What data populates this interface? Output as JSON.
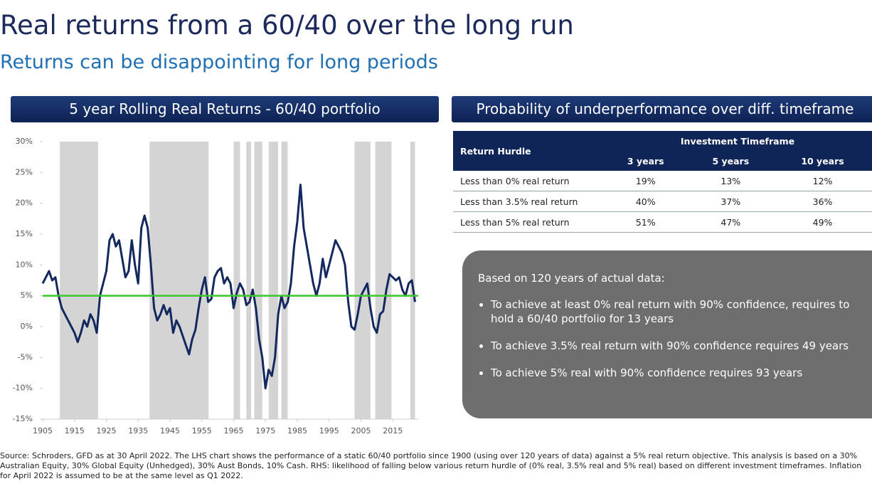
{
  "title": "Real returns from a 60/40 over the long run",
  "subtitle": "Returns can be disappointing for long periods",
  "left_header": "5 year Rolling Real Returns - 60/40 portfolio",
  "right_header": "Probability of underperformance over diff. timeframe",
  "chart_data": {
    "type": "line",
    "color": "#13285e",
    "x": [
      1905,
      1906,
      1907,
      1908,
      1909,
      1910,
      1911,
      1912,
      1913,
      1914,
      1915,
      1916,
      1917,
      1918,
      1919,
      1920,
      1921,
      1922,
      1923,
      1924,
      1925,
      1926,
      1927,
      1928,
      1929,
      1930,
      1931,
      1932,
      1933,
      1934,
      1935,
      1936,
      1937,
      1938,
      1939,
      1940,
      1941,
      1942,
      1943,
      1944,
      1945,
      1946,
      1947,
      1948,
      1949,
      1950,
      1951,
      1952,
      1953,
      1954,
      1955,
      1956,
      1957,
      1958,
      1959,
      1960,
      1961,
      1962,
      1963,
      1964,
      1965,
      1966,
      1967,
      1968,
      1969,
      1970,
      1971,
      1972,
      1973,
      1974,
      1975,
      1976,
      1977,
      1978,
      1979,
      1980,
      1981,
      1982,
      1983,
      1984,
      1985,
      1986,
      1987,
      1988,
      1989,
      1990,
      1991,
      1992,
      1993,
      1994,
      1995,
      1996,
      1997,
      1998,
      1999,
      2000,
      2001,
      2002,
      2003,
      2004,
      2005,
      2006,
      2007,
      2008,
      2009,
      2010,
      2011,
      2012,
      2013,
      2014,
      2015,
      2016,
      2017,
      2018,
      2019,
      2020,
      2021,
      2022
    ],
    "values": [
      7,
      8,
      9,
      7.5,
      8,
      5,
      3,
      2,
      1,
      0,
      -1,
      -2.5,
      -1,
      1,
      0,
      2,
      1,
      -1,
      5,
      7,
      9,
      14,
      15,
      13,
      14,
      11,
      8,
      9,
      14,
      10,
      7,
      16,
      18,
      16,
      10,
      3,
      1,
      2,
      3.5,
      2,
      3,
      -1,
      1,
      0,
      -1.5,
      -3,
      -4.5,
      -2,
      -0.5,
      3,
      6,
      8,
      4,
      4.5,
      8,
      9,
      9.5,
      7,
      8,
      7,
      3,
      5.5,
      7,
      6,
      3.5,
      4,
      6,
      3,
      -2,
      -5,
      -10,
      -7,
      -8,
      -5,
      2,
      5,
      3,
      4,
      7,
      13,
      17,
      23,
      16,
      13,
      10,
      7,
      5,
      7,
      11,
      8,
      10,
      12,
      14,
      13,
      12,
      10,
      4,
      0,
      -0.5,
      2,
      5,
      6,
      7,
      3,
      0,
      -1,
      2,
      2.5,
      6,
      8.5,
      8,
      7.5,
      8,
      6,
      5,
      7,
      7.5,
      4
    ],
    "xlim": [
      1905,
      2023
    ],
    "xticks": [
      1905,
      1915,
      1925,
      1935,
      1945,
      1955,
      1965,
      1975,
      1985,
      1995,
      2005,
      2015
    ],
    "ylim": [
      -15,
      30
    ],
    "yticks": [
      {
        "value": -15,
        "label": "-15%"
      },
      {
        "value": -10,
        "label": "-10%"
      },
      {
        "value": -5,
        "label": "-5%"
      },
      {
        "value": 0,
        "label": "0%"
      },
      {
        "value": 5,
        "label": "5%"
      },
      {
        "value": 10,
        "label": "10%"
      },
      {
        "value": 15,
        "label": "15%"
      },
      {
        "value": 20,
        "label": "20%"
      },
      {
        "value": 25,
        "label": "25%"
      },
      {
        "value": 30,
        "label": "30%"
      }
    ],
    "reference_line": 5,
    "reference_color": "#3ec42c",
    "shade_color": "#d4d4d4",
    "shaded_periods": [
      [
        1910.4,
        1922.4
      ],
      [
        1938.6,
        1957.1
      ],
      [
        1965,
        1967
      ],
      [
        1969,
        1970.5
      ],
      [
        1971.5,
        1974
      ],
      [
        1976,
        1979
      ],
      [
        1980,
        1982
      ],
      [
        2003,
        2008
      ],
      [
        2009.5,
        2014.6
      ],
      [
        2020.5,
        2022
      ]
    ]
  },
  "table": {
    "header_left": "Return Hurdle",
    "group": "Investment Timeframe",
    "columns": [
      "3 years",
      "5 years",
      "10 years"
    ],
    "rows": [
      [
        "Less than 0% real return",
        "19%",
        "13%",
        "12%"
      ],
      [
        "Less than 3.5% real return",
        "40%",
        "37%",
        "36%"
      ],
      [
        "Less than 5% real return",
        "51%",
        "47%",
        "49%"
      ]
    ]
  },
  "box": {
    "intro": "Based on 120 years of actual data:",
    "bullets": [
      "To achieve at least 0% real return with 90% confidence, requires to hold a 60/40 portfolio for 13 years",
      "To achieve 3.5% real return with 90% confidence requires 49 years",
      "To achieve 5% real with 90% confidence requires 93 years"
    ]
  },
  "source": "Source: Schroders, GFD as at 30 April 2022. The LHS chart shows the performance of a static 60/40 portfolio since 1900 (using over 120 years of data) against a 5% real return objective. This analysis is based on a 30% Australian Equity, 30% Global Equity (Unhedged), 30% Aust Bonds, 10% Cash. RHS: likelihood of falling below various return hurdle of (0% real, 3.5% real and 5% real) based on different investment timeframes. Inflation for April 2022 is assumed to be at the same level as Q1 2022."
}
